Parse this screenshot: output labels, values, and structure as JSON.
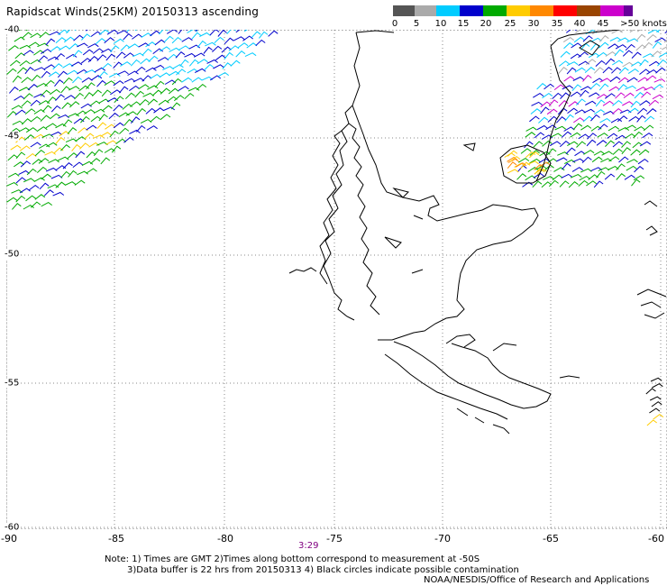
{
  "title": "Rapidscat Winds(25KM) 20150313 ascending",
  "colorbar": {
    "labels": [
      "0",
      "5",
      "10",
      "15",
      "20",
      "25",
      "30",
      "35",
      "40",
      "45",
      ">50 knots"
    ],
    "colors": [
      "#555555",
      "#aaaaaa",
      "#00ccff",
      "#0000cc",
      "#00aa00",
      "#ffcc00",
      "#ff8800",
      "#ff0000",
      "#994400",
      "#cc00cc",
      "#660099"
    ]
  },
  "axes": {
    "x_ticks": [
      "-90",
      "-85",
      "-80",
      "-75",
      "-70",
      "-65",
      "-60"
    ],
    "y_ticks": [
      "-40",
      "-45",
      "-50",
      "-55",
      "-60"
    ],
    "lon_range": [
      -90,
      -60
    ],
    "lat_range": [
      -60,
      -40
    ]
  },
  "time_label": "3:29",
  "notes": {
    "line1": "Note: 1) Times are GMT 2)Times along bottom correspond to measurement at -50S",
    "line2": "3)Data buffer is 22 hrs from 20150313 4) Black circles indicate possible contamination",
    "line3": "NOAA/NESDIS/Office of Research and Applications"
  },
  "style_colors": {
    "coast": "#000000",
    "grid": "#888888",
    "time": "#800080"
  }
}
